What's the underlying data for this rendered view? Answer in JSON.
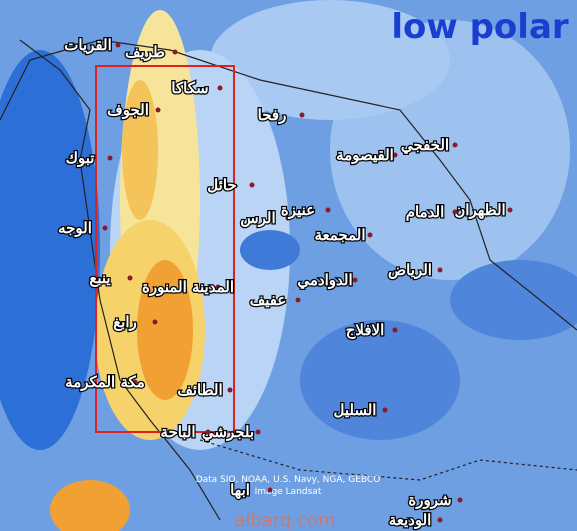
{
  "title": "low polar",
  "cities": [
    {
      "label": "القريات"
    },
    {
      "label": "طريف"
    },
    {
      "label": "سكاكا"
    },
    {
      "label": "الجوف"
    },
    {
      "label": "تبوك"
    },
    {
      "label": "رفحا"
    },
    {
      "label": "حائل"
    },
    {
      "label": "الوجه"
    },
    {
      "label": "الخفجي"
    },
    {
      "label": "القيصومة"
    },
    {
      "label": "الظهران"
    },
    {
      "label": "الدمام"
    },
    {
      "label": "الرس"
    },
    {
      "label": "عنيزة"
    },
    {
      "label": "المجمعة"
    },
    {
      "label": "الرياض"
    },
    {
      "label": "الدوادمي"
    },
    {
      "label": "ينبع"
    },
    {
      "label": "المدينة المنورة"
    },
    {
      "label": "عفيف"
    },
    {
      "label": "الافلاج"
    },
    {
      "label": "رابغ"
    },
    {
      "label": "مكة المكرمة"
    },
    {
      "label": "الطائف"
    },
    {
      "label": "السليل"
    },
    {
      "label": "بلجرشي"
    },
    {
      "label": "الباحة"
    },
    {
      "label": "ابها"
    },
    {
      "label": "شرورة"
    },
    {
      "label": "الوديعة"
    }
  ],
  "attribution": [
    "Data SIO, NOAA, U.S. Navy, NGA, GEBCO",
    "Image Landsat"
  ],
  "watermark": "albarq.com"
}
